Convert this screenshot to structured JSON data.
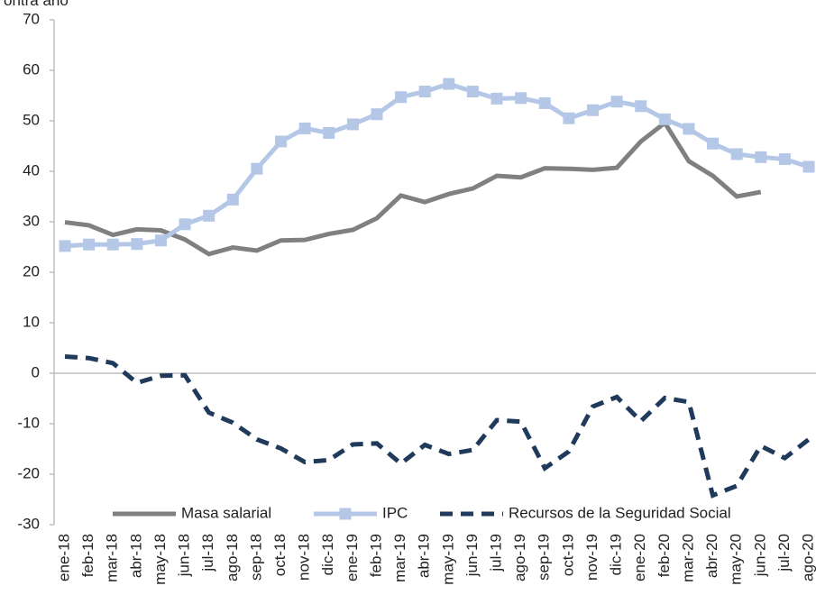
{
  "chart_data": {
    "type": "line",
    "y_label": "ontra año",
    "categories": [
      "ene-18",
      "feb-18",
      "mar-18",
      "abr-18",
      "may-18",
      "jun-18",
      "jul-18",
      "ago-18",
      "sep-18",
      "oct-18",
      "nov-18",
      "dic-18",
      "ene-19",
      "feb-19",
      "mar-19",
      "abr-19",
      "may-19",
      "jun-19",
      "jul-19",
      "ago-19",
      "sep-19",
      "oct-19",
      "nov-19",
      "dic-19",
      "ene-20",
      "feb-20",
      "mar-20",
      "abr-20",
      "may-20",
      "jun-20",
      "jul-20",
      "ago-20"
    ],
    "series": [
      {
        "name": "Masa salarial",
        "color": "#808080",
        "dash": false,
        "marker": false,
        "values": [
          29.9,
          29.3,
          27.4,
          28.5,
          28.3,
          26.5,
          23.6,
          24.9,
          24.3,
          26.3,
          26.4,
          27.6,
          28.4,
          30.7,
          35.2,
          33.9,
          35.5,
          36.6,
          39.1,
          38.8,
          40.6,
          40.5,
          40.3,
          40.7,
          45.9,
          49.6,
          42.0,
          39.1,
          35.0,
          35.9,
          null,
          null
        ]
      },
      {
        "name": "IPC",
        "color": "#b4c7e7",
        "dash": false,
        "marker": true,
        "values": [
          25.2,
          25.5,
          25.5,
          25.6,
          26.3,
          29.5,
          31.2,
          34.4,
          40.5,
          45.9,
          48.5,
          47.6,
          49.3,
          51.3,
          54.7,
          55.8,
          57.3,
          55.8,
          54.4,
          54.5,
          53.5,
          50.5,
          52.1,
          53.8,
          52.9,
          50.3,
          48.4,
          45.5,
          43.4,
          42.8,
          42.4,
          40.9
        ]
      },
      {
        "name": "Recursos de la Seguridad Social",
        "color": "#1f3a5a",
        "dash": true,
        "marker": false,
        "values": [
          3.3,
          3.0,
          2.0,
          -1.9,
          -0.5,
          -0.4,
          -7.8,
          -9.8,
          -13.1,
          -14.9,
          -17.6,
          -17.2,
          -14.1,
          -13.9,
          -17.9,
          -14.2,
          -16.0,
          -15.2,
          -9.3,
          -9.6,
          -18.8,
          -15.5,
          -6.6,
          -4.7,
          -9.5,
          -4.9,
          -5.7,
          -24.2,
          -22.3,
          -14.4,
          -16.8,
          -13.1
        ]
      }
    ],
    "ylim": [
      -30,
      70
    ],
    "yticks": [
      -30,
      -20,
      -10,
      0,
      10,
      20,
      30,
      40,
      50,
      60,
      70
    ],
    "legend": "bottom"
  }
}
